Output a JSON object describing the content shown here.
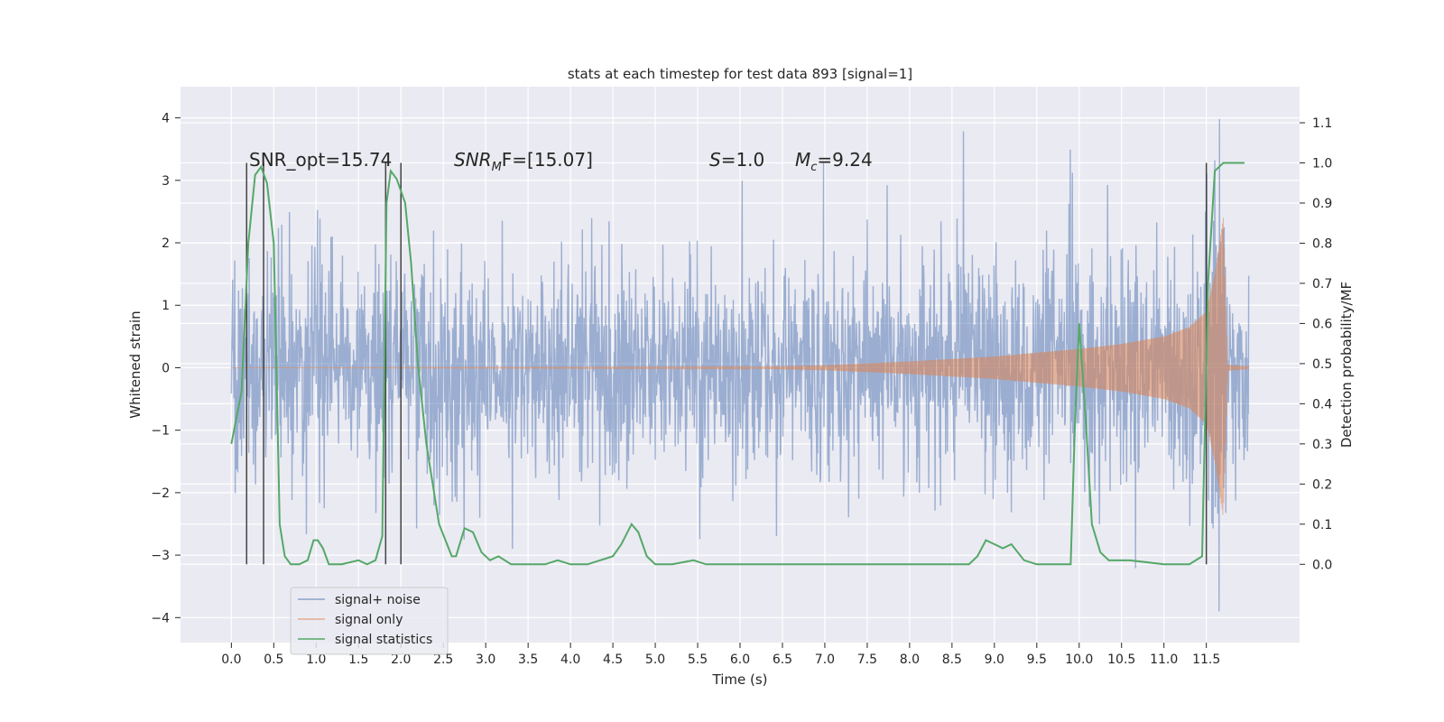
{
  "chart_data": {
    "type": "line",
    "title": "stats at each timestep for test data 893 [signal=1]",
    "xlabel": "Time (s)",
    "ylabel_left": "Whitened strain",
    "ylabel_right": "Detection probability/MF",
    "xlim": [
      -0.6,
      12.6
    ],
    "ylim_left": [
      -4.4,
      4.5
    ],
    "ylim_right": [
      -0.195,
      1.19
    ],
    "xticks": [
      0.0,
      0.5,
      1.0,
      1.5,
      2.0,
      2.5,
      3.0,
      3.5,
      4.0,
      4.5,
      5.0,
      5.5,
      6.0,
      6.5,
      7.0,
      7.5,
      8.0,
      8.5,
      9.0,
      9.5,
      10.0,
      10.5,
      11.0,
      11.5
    ],
    "xtick_labels": [
      "0.0",
      "0.5",
      "1.0",
      "1.5",
      "2.0",
      "2.5",
      "3.0",
      "3.5",
      "4.0",
      "4.5",
      "5.0",
      "5.5",
      "6.0",
      "6.5",
      "7.0",
      "7.5",
      "8.0",
      "8.5",
      "9.0",
      "9.5",
      "10.0",
      "10.5",
      "11.0",
      "11.5"
    ],
    "yticks_left": [
      -4,
      -3,
      -2,
      -1,
      0,
      1,
      2,
      3,
      4
    ],
    "yticks_left_labels": [
      "−4",
      "−3",
      "−2",
      "−1",
      "0",
      "1",
      "2",
      "3",
      "4"
    ],
    "yticks_right": [
      0.0,
      0.1,
      0.2,
      0.3,
      0.4,
      0.5,
      0.6,
      0.7,
      0.8,
      0.9,
      1.0,
      1.1
    ],
    "yticks_right_labels": [
      "0.0",
      "0.1",
      "0.2",
      "0.3",
      "0.4",
      "0.5",
      "0.6",
      "0.7",
      "0.8",
      "0.9",
      "1.0",
      "1.1"
    ],
    "grid": true,
    "legend_position": "lower-left",
    "series": [
      {
        "name": "signal+ noise",
        "color": "#4c72b0",
        "axis": "left",
        "time_range": [
          0.0,
          12.0
        ],
        "typical_amplitude": 1.3,
        "peak_envelope": [
          2.0,
          4.1
        ]
      },
      {
        "name": "signal only",
        "color": "#dd8452",
        "axis": "left",
        "time_range": [
          0.0,
          12.0
        ],
        "envelope_t": [
          0.0,
          6.0,
          7.0,
          8.0,
          9.0,
          10.0,
          10.5,
          11.0,
          11.3,
          11.5,
          11.6,
          11.7,
          11.75,
          12.0
        ],
        "envelope_amp": [
          0.0,
          0.01,
          0.04,
          0.1,
          0.18,
          0.3,
          0.38,
          0.5,
          0.65,
          0.9,
          1.5,
          2.4,
          0.05,
          0.02
        ]
      },
      {
        "name": "signal statistics",
        "color": "#55a868",
        "axis": "right",
        "x": [
          0.0,
          0.12,
          0.2,
          0.28,
          0.35,
          0.42,
          0.5,
          0.57,
          0.63,
          0.7,
          0.8,
          0.9,
          0.97,
          1.02,
          1.08,
          1.15,
          1.3,
          1.5,
          1.6,
          1.7,
          1.78,
          1.83,
          1.88,
          1.95,
          2.05,
          2.12,
          2.2,
          2.3,
          2.45,
          2.6,
          2.65,
          2.75,
          2.85,
          2.95,
          3.05,
          3.15,
          3.3,
          3.7,
          3.85,
          4.0,
          4.2,
          4.5,
          4.6,
          4.72,
          4.8,
          4.9,
          5.0,
          5.2,
          5.45,
          5.6,
          5.9,
          6.3,
          7.0,
          7.5,
          8.0,
          8.5,
          8.7,
          8.8,
          8.9,
          9.0,
          9.1,
          9.2,
          9.35,
          9.5,
          9.9,
          9.95,
          10.0,
          10.08,
          10.15,
          10.25,
          10.35,
          10.6,
          11.0,
          11.3,
          11.45,
          11.52,
          11.6,
          11.7,
          11.8,
          11.95
        ],
        "y": [
          0.3,
          0.43,
          0.8,
          0.97,
          0.99,
          0.95,
          0.8,
          0.1,
          0.02,
          0.0,
          0.0,
          0.01,
          0.06,
          0.06,
          0.04,
          0.0,
          0.0,
          0.01,
          0.0,
          0.01,
          0.07,
          0.9,
          0.98,
          0.96,
          0.9,
          0.75,
          0.5,
          0.3,
          0.1,
          0.02,
          0.02,
          0.09,
          0.08,
          0.03,
          0.01,
          0.02,
          0.0,
          0.0,
          0.01,
          0.0,
          0.0,
          0.02,
          0.05,
          0.1,
          0.08,
          0.02,
          0.0,
          0.0,
          0.01,
          0.0,
          0.0,
          0.0,
          0.0,
          0.0,
          0.0,
          0.0,
          0.0,
          0.02,
          0.06,
          0.05,
          0.04,
          0.05,
          0.01,
          0.0,
          0.0,
          0.35,
          0.6,
          0.35,
          0.1,
          0.03,
          0.01,
          0.01,
          0.0,
          0.0,
          0.02,
          0.7,
          0.98,
          1.0,
          1.0,
          1.0
        ]
      }
    ],
    "vertical_lines": {
      "color": "#444444",
      "x": [
        0.18,
        0.38,
        1.82,
        2.0,
        11.5
      ],
      "y_from": 0.0,
      "y_to": 1.0,
      "axis": "right"
    },
    "annotations": {
      "snr_opt": "SNR_opt=15.74",
      "snr_mf_symbol": "SNR",
      "snr_mf_subscript": "M",
      "snr_mf_rest": "F=[15.07]",
      "s_symbol": "S",
      "s_rest": "=1.0",
      "mc_symbol": "M",
      "mc_subscript": "c",
      "mc_rest": "=9.24"
    },
    "legend": [
      "signal+ noise",
      "signal only",
      "signal statistics"
    ]
  }
}
